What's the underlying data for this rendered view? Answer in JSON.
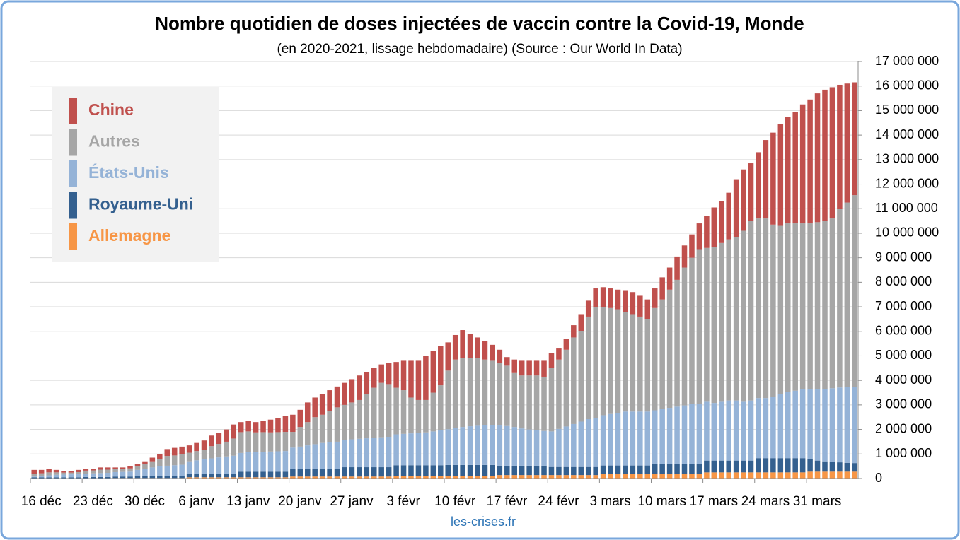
{
  "chart_data": {
    "type": "stacked_bar",
    "title": "Nombre quotidien de doses injectées de vaccin contre la Covid-19, Monde",
    "subtitle": "(en 2020-2021, lissage hebdomadaire) (Source : Our World In Data)",
    "source": "les-crises.fr",
    "categories": [
      "16 déc",
      null,
      null,
      null,
      null,
      null,
      null,
      "23 déc",
      null,
      null,
      null,
      null,
      null,
      null,
      "30 déc",
      null,
      null,
      null,
      null,
      null,
      null,
      "6 janv",
      null,
      null,
      null,
      null,
      null,
      null,
      "13 janv",
      null,
      null,
      null,
      null,
      null,
      null,
      "20 janv",
      null,
      null,
      null,
      null,
      null,
      null,
      "27 janv",
      null,
      null,
      null,
      null,
      null,
      null,
      "3 févr",
      null,
      null,
      null,
      null,
      null,
      null,
      "10 févr",
      null,
      null,
      null,
      null,
      null,
      null,
      "17 févr",
      null,
      null,
      null,
      null,
      null,
      null,
      "24 févr",
      null,
      null,
      null,
      null,
      null,
      null,
      "3 mars",
      null,
      null,
      null,
      null,
      null,
      null,
      "10 mars",
      null,
      null,
      null,
      null,
      null,
      null,
      "17 mars",
      null,
      null,
      null,
      null,
      null,
      null,
      "24 mars",
      null,
      null,
      null,
      null,
      null,
      null,
      "31 mars",
      null,
      null,
      null,
      null,
      null,
      null
    ],
    "series": [
      {
        "name": "Allemagne",
        "color": "#f79646",
        "values": [
          0,
          0,
          0,
          0,
          0,
          0,
          0,
          0,
          0,
          0,
          0,
          20000,
          20000,
          20000,
          20000,
          20000,
          20000,
          20000,
          20000,
          20000,
          20000,
          50000,
          50000,
          50000,
          50000,
          50000,
          50000,
          50000,
          50000,
          50000,
          50000,
          50000,
          50000,
          50000,
          50000,
          80000,
          80000,
          80000,
          80000,
          80000,
          80000,
          80000,
          80000,
          80000,
          80000,
          80000,
          80000,
          80000,
          80000,
          110000,
          110000,
          110000,
          110000,
          110000,
          110000,
          110000,
          110000,
          110000,
          110000,
          110000,
          110000,
          110000,
          110000,
          140000,
          140000,
          140000,
          140000,
          140000,
          140000,
          140000,
          140000,
          140000,
          140000,
          140000,
          140000,
          140000,
          140000,
          200000,
          200000,
          200000,
          200000,
          200000,
          200000,
          200000,
          200000,
          200000,
          200000,
          200000,
          200000,
          200000,
          200000,
          250000,
          250000,
          250000,
          250000,
          250000,
          250000,
          250000,
          250000,
          250000,
          250000,
          250000,
          250000,
          250000,
          250000,
          280000,
          280000,
          280000,
          280000,
          280000,
          280000,
          280000
        ]
      },
      {
        "name": "Royaume-Uni",
        "color": "#34608f",
        "values": [
          50000,
          50000,
          50000,
          50000,
          50000,
          50000,
          50000,
          60000,
          60000,
          60000,
          60000,
          60000,
          60000,
          60000,
          80000,
          80000,
          80000,
          80000,
          80000,
          80000,
          80000,
          150000,
          150000,
          150000,
          150000,
          150000,
          150000,
          150000,
          230000,
          230000,
          230000,
          230000,
          230000,
          230000,
          230000,
          320000,
          320000,
          320000,
          320000,
          320000,
          320000,
          320000,
          380000,
          380000,
          380000,
          380000,
          380000,
          380000,
          380000,
          430000,
          430000,
          430000,
          430000,
          430000,
          430000,
          430000,
          440000,
          440000,
          440000,
          440000,
          440000,
          440000,
          440000,
          380000,
          380000,
          380000,
          380000,
          380000,
          380000,
          380000,
          330000,
          330000,
          330000,
          330000,
          330000,
          330000,
          330000,
          330000,
          330000,
          330000,
          330000,
          330000,
          330000,
          330000,
          380000,
          380000,
          380000,
          380000,
          380000,
          380000,
          380000,
          480000,
          480000,
          480000,
          480000,
          480000,
          480000,
          480000,
          580000,
          580000,
          580000,
          580000,
          580000,
          580000,
          580000,
          500000,
          450000,
          420000,
          400000,
          380000,
          360000,
          350000
        ]
      },
      {
        "name": "États-Unis",
        "color": "#95b3d7",
        "values": [
          30000,
          60000,
          80000,
          100000,
          110000,
          120000,
          130000,
          140000,
          150000,
          160000,
          170000,
          180000,
          190000,
          200000,
          250000,
          300000,
          350000,
          400000,
          420000,
          440000,
          460000,
          500000,
          540000,
          580000,
          620000,
          660000,
          700000,
          730000,
          760000,
          790000,
          800000,
          810000,
          820000,
          830000,
          840000,
          860000,
          900000,
          950000,
          1000000,
          1050000,
          1080000,
          1100000,
          1120000,
          1140000,
          1160000,
          1180000,
          1200000,
          1220000,
          1240000,
          1260000,
          1280000,
          1300000,
          1320000,
          1340000,
          1380000,
          1420000,
          1460000,
          1500000,
          1550000,
          1580000,
          1600000,
          1620000,
          1640000,
          1640000,
          1620000,
          1580000,
          1520000,
          1480000,
          1440000,
          1420000,
          1450000,
          1550000,
          1650000,
          1750000,
          1850000,
          1950000,
          2000000,
          2050000,
          2100000,
          2150000,
          2200000,
          2200000,
          2200000,
          2200000,
          2200000,
          2250000,
          2300000,
          2350000,
          2400000,
          2450000,
          2450000,
          2400000,
          2350000,
          2400000,
          2450000,
          2450000,
          2400000,
          2450000,
          2450000,
          2450000,
          2500000,
          2600000,
          2700000,
          2750000,
          2800000,
          2850000,
          2900000,
          2950000,
          3000000,
          3050000,
          3100000,
          3100000
        ]
      },
      {
        "name": "Autres",
        "color": "#a6a6a6",
        "values": [
          100000,
          100000,
          120000,
          100000,
          80000,
          70000,
          80000,
          120000,
          120000,
          140000,
          130000,
          120000,
          120000,
          130000,
          150000,
          200000,
          250000,
          300000,
          400000,
          400000,
          420000,
          350000,
          380000,
          400000,
          500000,
          550000,
          600000,
          700000,
          850000,
          850000,
          800000,
          800000,
          780000,
          780000,
          780000,
          640000,
          800000,
          950000,
          1100000,
          1150000,
          1270000,
          1400000,
          1420000,
          1500000,
          1580000,
          1810000,
          2040000,
          2220000,
          2150000,
          1900000,
          1780000,
          1460000,
          1340000,
          1320000,
          1580000,
          1840000,
          2390000,
          2800000,
          2800000,
          2770000,
          2750000,
          2680000,
          2610000,
          2540000,
          2460000,
          2200000,
          2160000,
          2200000,
          2240000,
          2210000,
          2580000,
          2830000,
          3130000,
          3530000,
          3680000,
          4180000,
          4530000,
          4420000,
          4320000,
          4220000,
          4070000,
          3970000,
          3870000,
          3770000,
          4170000,
          4470000,
          4820000,
          5170000,
          5620000,
          5970000,
          6320000,
          6270000,
          6370000,
          6470000,
          6570000,
          6670000,
          6970000,
          7320000,
          7320000,
          7320000,
          7020000,
          6870000,
          6870000,
          6820000,
          6770000,
          6770000,
          6820000,
          6850000,
          6920000,
          7290000,
          7510000,
          7820000
        ]
      },
      {
        "name": "Chine",
        "color": "#c0504d",
        "values": [
          170000,
          140000,
          150000,
          100000,
          60000,
          60000,
          90000,
          80000,
          70000,
          90000,
          90000,
          70000,
          60000,
          90000,
          100000,
          100000,
          150000,
          200000,
          280000,
          310000,
          320000,
          300000,
          330000,
          370000,
          430000,
          440000,
          500000,
          570000,
          410000,
          430000,
          420000,
          460000,
          520000,
          560000,
          650000,
          700000,
          700000,
          800000,
          800000,
          850000,
          850000,
          850000,
          900000,
          950000,
          1000000,
          900000,
          800000,
          750000,
          850000,
          1050000,
          1200000,
          1500000,
          1600000,
          1800000,
          1700000,
          1600000,
          1150000,
          1000000,
          1150000,
          1000000,
          850000,
          750000,
          650000,
          550000,
          350000,
          550000,
          600000,
          600000,
          600000,
          650000,
          600000,
          450000,
          450000,
          500000,
          700000,
          650000,
          750000,
          800000,
          800000,
          800000,
          850000,
          900000,
          850000,
          800000,
          800000,
          900000,
          900000,
          950000,
          900000,
          950000,
          1050000,
          1300000,
          1600000,
          1700000,
          1900000,
          2350000,
          2500000,
          2350000,
          2700000,
          3200000,
          3750000,
          4150000,
          4350000,
          4550000,
          4850000,
          5050000,
          5250000,
          5350000,
          5350000,
          5050000,
          4850000,
          4600000
        ]
      }
    ],
    "ylim": [
      0,
      17000000
    ],
    "yticks": [
      0,
      {
        "value": 1000000,
        "label": "1 000 000"
      },
      {
        "value": 2000000,
        "label": "2 000 000"
      },
      {
        "value": 3000000,
        "label": "3 000 000"
      },
      {
        "value": 4000000,
        "label": "4 000 000"
      },
      {
        "value": 5000000,
        "label": "5 000 000"
      },
      {
        "value": 6000000,
        "label": "6 000 000"
      },
      {
        "value": 7000000,
        "label": "7 000 000"
      },
      {
        "value": 8000000,
        "label": "8 000 000"
      },
      {
        "value": 9000000,
        "label": "9 000 000"
      },
      {
        "value": 10000000,
        "label": "10 000 000"
      },
      {
        "value": 11000000,
        "label": "11 000 000"
      },
      {
        "value": 12000000,
        "label": "12 000 000"
      },
      {
        "value": 13000000,
        "label": "13 000 000"
      },
      {
        "value": 14000000,
        "label": "14 000 000"
      },
      {
        "value": 15000000,
        "label": "15 000 000"
      },
      {
        "value": 16000000,
        "label": "16 000 000"
      },
      {
        "value": 17000000,
        "label": "17 000 000"
      }
    ],
    "grid": true,
    "legend": "top-left"
  }
}
